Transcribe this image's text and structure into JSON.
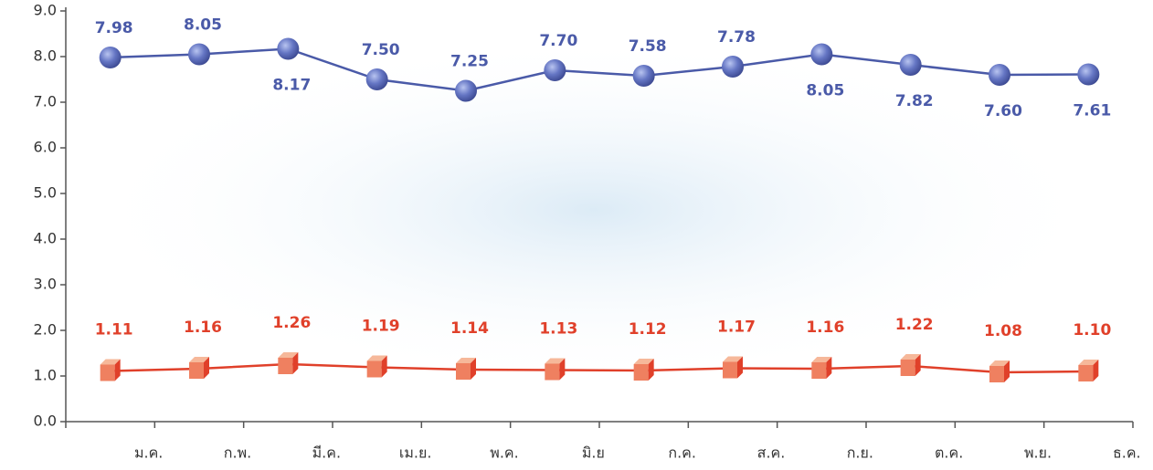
{
  "chart_data": {
    "type": "line",
    "categories": [
      "ม.ค.",
      "ก.พ.",
      "มี.ค.",
      "เม.ย.",
      "พ.ค.",
      "มิ.ย",
      "ก.ค.",
      "ส.ค.",
      "ก.ย.",
      "ต.ค.",
      "พ.ย.",
      "ธ.ค."
    ],
    "series": [
      {
        "color": "#4a5aa8",
        "marker": "circle",
        "values": [
          7.98,
          8.05,
          8.17,
          7.5,
          7.25,
          7.7,
          7.58,
          7.78,
          8.05,
          7.82,
          7.6,
          7.61
        ],
        "value_labels": [
          "7.98",
          "8.05",
          "8.17",
          "7.50",
          "7.25",
          "7.70",
          "7.58",
          "7.78",
          "8.05",
          "7.82",
          "7.60",
          "7.61"
        ]
      },
      {
        "color": "#e0402a",
        "marker": "cube",
        "values": [
          1.11,
          1.16,
          1.26,
          1.19,
          1.14,
          1.13,
          1.12,
          1.17,
          1.16,
          1.22,
          1.08,
          1.1
        ],
        "value_labels": [
          "1.11",
          "1.16",
          "1.26",
          "1.19",
          "1.14",
          "1.13",
          "1.12",
          "1.17",
          "1.16",
          "1.22",
          "1.08",
          "1.10"
        ]
      }
    ],
    "ylim": [
      0,
      9
    ],
    "yticks": [
      {
        "value": 0,
        "label": "0.0"
      },
      {
        "value": 1,
        "label": "1.0"
      },
      {
        "value": 2,
        "label": "2.0"
      },
      {
        "value": 3,
        "label": "3.0"
      },
      {
        "value": 4,
        "label": "4.0"
      },
      {
        "value": 5,
        "label": "5.0"
      },
      {
        "value": 6,
        "label": "6.0"
      },
      {
        "value": 7,
        "label": "7.0"
      },
      {
        "value": 8,
        "label": "8.0"
      },
      {
        "value": 9,
        "label": "9.0"
      }
    ],
    "grid": false
  }
}
